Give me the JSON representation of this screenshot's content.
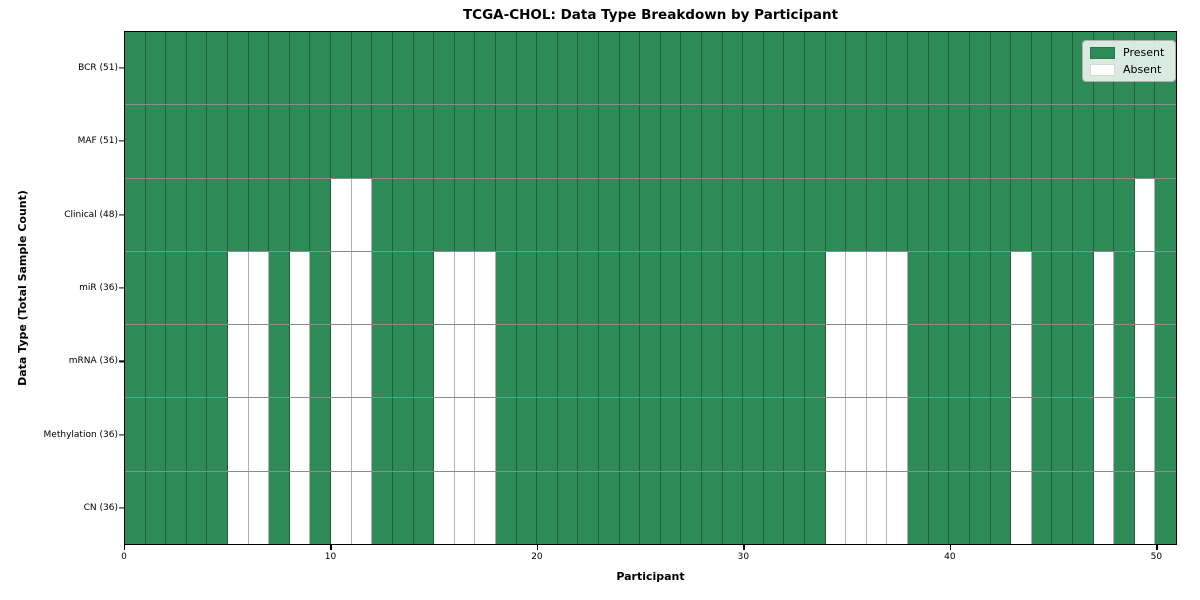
{
  "figure": {
    "title": "TCGA-CHOL: Data Type Breakdown by Participant",
    "xlabel": "Participant",
    "ylabel": "Data Type (Total Sample Count)"
  },
  "legend": {
    "items": [
      {
        "label": "Present",
        "color": "#2e8b57"
      },
      {
        "label": "Absent",
        "color": "#ffffff"
      }
    ]
  },
  "chart_data": {
    "type": "heatmap",
    "title": "TCGA-CHOL: Data Type Breakdown by Participant",
    "xlabel": "Participant",
    "ylabel": "Data Type (Total Sample Count)",
    "x_range": [
      0,
      51
    ],
    "x_ticks": [
      0,
      10,
      20,
      30,
      40,
      50
    ],
    "n_participants": 51,
    "present_color": "#2e8b57",
    "absent_color": "#ffffff",
    "grid": true,
    "legend_position": "upper right",
    "legend_entries": [
      "Present",
      "Absent"
    ],
    "rows": [
      {
        "label": "BCR",
        "total": 51,
        "display": "BCR (51)",
        "absent": []
      },
      {
        "label": "MAF",
        "total": 51,
        "display": "MAF (51)",
        "absent": []
      },
      {
        "label": "Clinical",
        "total": 48,
        "display": "Clinical (48)",
        "absent": [
          10,
          11,
          49
        ]
      },
      {
        "label": "miR",
        "total": 36,
        "display": "miR (36)",
        "absent": [
          5,
          6,
          8,
          10,
          11,
          15,
          16,
          17,
          34,
          35,
          36,
          37,
          43,
          47,
          49
        ]
      },
      {
        "label": "mRNA",
        "total": 36,
        "display": "mRNA (36)",
        "absent": [
          5,
          6,
          8,
          10,
          11,
          15,
          16,
          17,
          34,
          35,
          36,
          37,
          43,
          47,
          49
        ]
      },
      {
        "label": "Methylation",
        "total": 36,
        "display": "Methylation (36)",
        "absent": [
          5,
          6,
          8,
          10,
          11,
          15,
          16,
          17,
          34,
          35,
          36,
          37,
          43,
          47,
          49
        ]
      },
      {
        "label": "CN",
        "total": 36,
        "display": "CN (36)",
        "absent": [
          5,
          6,
          8,
          10,
          11,
          15,
          16,
          17,
          34,
          35,
          36,
          37,
          43,
          47,
          49
        ]
      }
    ]
  }
}
